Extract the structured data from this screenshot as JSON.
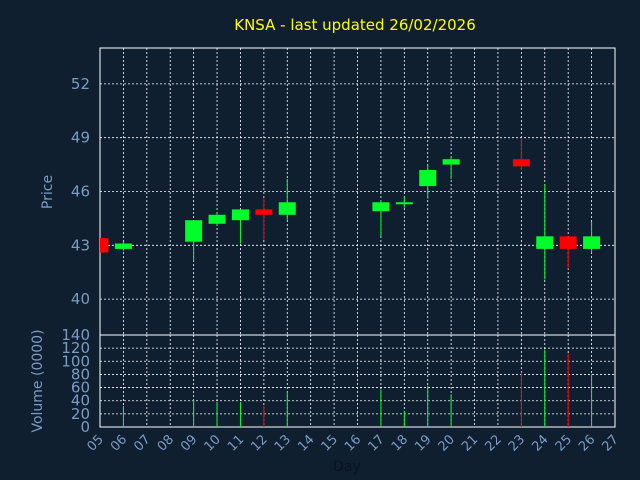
{
  "chart_data": {
    "type": "candlestick",
    "title": "KNSA - last updated 26/02/2026",
    "ylabel": "Price",
    "ylabel_volume": "Volume (0000)",
    "xlabel": "Day",
    "ylim": [
      38,
      54
    ],
    "price_ticks": [
      40,
      43,
      46,
      49,
      52
    ],
    "volume_ylim": [
      0,
      140
    ],
    "volume_ticks": [
      0,
      20,
      40,
      60,
      80,
      100,
      120,
      140
    ],
    "x_tick_labels": [
      "05",
      "06",
      "07",
      "08",
      "09",
      "10",
      "11",
      "12",
      "13",
      "14",
      "15",
      "16",
      "17",
      "18",
      "19",
      "20",
      "21",
      "22",
      "23",
      "24",
      "25",
      "26",
      "27"
    ],
    "candles": [
      {
        "day": "05",
        "open": 43.4,
        "high": 43.4,
        "low": 42.6,
        "close": 42.6,
        "volume": 0
      },
      {
        "day": "06",
        "open": 42.8,
        "high": 43.2,
        "low": 42.7,
        "close": 43.1,
        "volume": 32
      },
      {
        "day": "09",
        "open": 43.2,
        "high": 44.4,
        "low": 42.1,
        "close": 44.4,
        "volume": 42
      },
      {
        "day": "10",
        "open": 44.2,
        "high": 44.8,
        "low": 44.1,
        "close": 44.7,
        "volume": 38
      },
      {
        "day": "11",
        "open": 44.4,
        "high": 45.0,
        "low": 43.1,
        "close": 45.0,
        "volume": 38
      },
      {
        "day": "12",
        "open": 45.0,
        "high": 45.6,
        "low": 43.3,
        "close": 44.7,
        "volume": 32
      },
      {
        "day": "13",
        "open": 44.7,
        "high": 46.7,
        "low": 44.4,
        "close": 45.4,
        "volume": 53
      },
      {
        "day": "17",
        "open": 44.9,
        "high": 45.5,
        "low": 43.5,
        "close": 45.4,
        "volume": 57
      },
      {
        "day": "18",
        "open": 45.3,
        "high": 45.7,
        "low": 45.1,
        "close": 45.4,
        "volume": 24
      },
      {
        "day": "19",
        "open": 46.3,
        "high": 47.5,
        "low": 45.6,
        "close": 47.2,
        "volume": 63
      },
      {
        "day": "20",
        "open": 47.5,
        "high": 47.9,
        "low": 46.7,
        "close": 47.8,
        "volume": 50
      },
      {
        "day": "23",
        "open": 47.8,
        "high": 49.0,
        "low": 47.2,
        "close": 47.4,
        "volume": 83
      },
      {
        "day": "24",
        "open": 42.8,
        "high": 46.4,
        "low": 41.1,
        "close": 43.5,
        "volume": 118
      },
      {
        "day": "25",
        "open": 43.5,
        "high": 43.5,
        "low": 41.7,
        "close": 42.8,
        "volume": 112
      },
      {
        "day": "26",
        "open": 42.8,
        "high": 44.3,
        "low": 42.6,
        "close": 43.5,
        "volume": 80
      }
    ],
    "grid": true,
    "colors": {
      "background": "#0f1f30",
      "up": "#00ff2a",
      "down": "#ff0000",
      "grid": "#ffffff",
      "axis_text": "#7a9cc4",
      "title_text": "#ffff00",
      "xlabel_text": "#0a1420"
    }
  }
}
